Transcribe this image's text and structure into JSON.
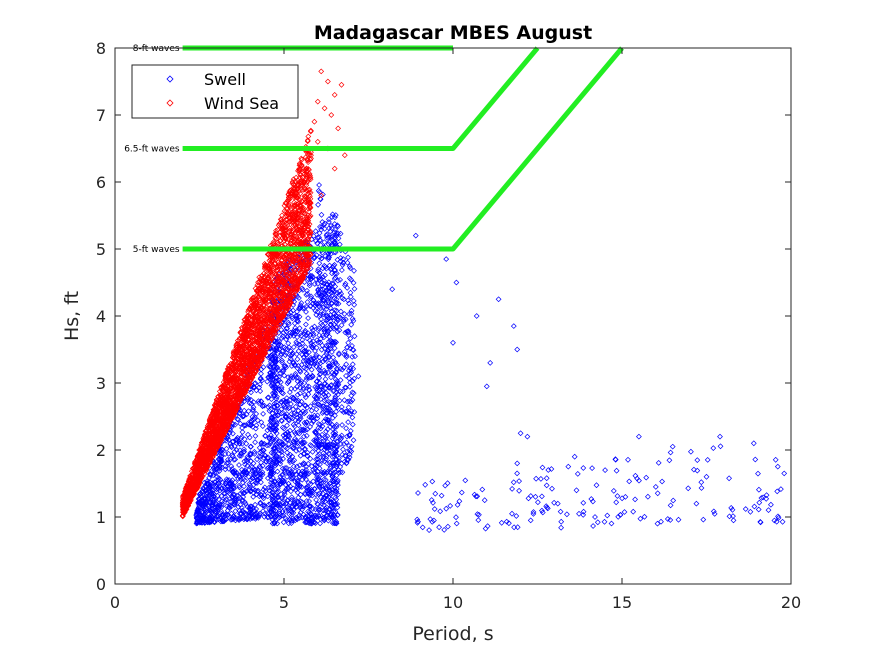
{
  "chart_data": {
    "type": "scatter",
    "title": "Madagascar MBES August",
    "xlabel": "Period, s",
    "ylabel": "Hs, ft",
    "xlim": [
      0,
      20
    ],
    "ylim": [
      0,
      8
    ],
    "xticks": [
      0,
      5,
      10,
      15,
      20
    ],
    "yticks": [
      0,
      1,
      2,
      3,
      4,
      5,
      6,
      7,
      8
    ],
    "grid": false,
    "legend": {
      "location": "top-left",
      "entries": [
        "Swell",
        "Wind Sea"
      ]
    },
    "colors": {
      "swell": "#0000ff",
      "wind_sea": "#ff0000",
      "threshold": "#22ee22"
    },
    "series": [
      {
        "name": "Swell",
        "marker": "diamond",
        "clusters": [
          {
            "x_min": 2.4,
            "x_max": 4.8,
            "y_min_at_xmin": 0.9,
            "y_max_at_xmin": 1.2,
            "y_min_at_xmax": 1.0,
            "y_max_at_xmax": 4.4,
            "count": 900
          },
          {
            "x_min": 4.6,
            "x_max": 6.6,
            "y_min_at_xmin": 0.9,
            "y_max_at_xmin": 4.6,
            "y_min_at_xmax": 0.9,
            "y_max_at_xmax": 5.6,
            "count": 1400
          },
          {
            "x_min": 6.0,
            "x_max": 7.1,
            "y_min_at_xmin": 1.0,
            "y_max_at_xmin": 6.0,
            "y_min_at_xmax": 2.0,
            "y_max_at_xmax": 4.8,
            "count": 350
          },
          {
            "x_min": 8.9,
            "x_max": 19.8,
            "y_min_at_xmin": 0.8,
            "y_max_at_xmin": 1.5,
            "y_min_at_xmax": 0.9,
            "y_max_at_xmax": 2.2,
            "count": 170
          }
        ],
        "points": [
          [
            8.2,
            4.4
          ],
          [
            8.9,
            5.2
          ],
          [
            9.8,
            4.85
          ],
          [
            10.0,
            3.6
          ],
          [
            10.1,
            4.5
          ],
          [
            10.7,
            4.0
          ],
          [
            11.1,
            3.3
          ],
          [
            11.0,
            2.95
          ],
          [
            11.35,
            4.25
          ],
          [
            11.8,
            3.85
          ],
          [
            11.9,
            3.5
          ],
          [
            12.0,
            2.25
          ],
          [
            12.2,
            2.2
          ],
          [
            11.9,
            1.8
          ],
          [
            12.3,
            0.95
          ],
          [
            13.6,
            1.9
          ],
          [
            14.5,
            1.7
          ],
          [
            15.5,
            2.2
          ],
          [
            16.5,
            2.05
          ],
          [
            17.9,
            2.2
          ],
          [
            18.9,
            2.1
          ],
          [
            19.8,
            1.65
          ],
          [
            16.0,
            1.45
          ],
          [
            17.5,
            1.6
          ],
          [
            19.1,
            0.92
          ],
          [
            18.3,
            0.95
          ],
          [
            17.2,
            1.2
          ],
          [
            15.1,
            1.3
          ],
          [
            14.2,
            1.0
          ],
          [
            13.1,
            1.2
          ],
          [
            7.1,
            3.4
          ],
          [
            7.2,
            3.1
          ],
          [
            6.9,
            3.6
          ]
        ]
      },
      {
        "name": "Wind Sea",
        "marker": "diamond",
        "clusters": [
          {
            "x_min": 2.0,
            "x_max": 5.8,
            "y_min_at_xmin": 1.0,
            "y_max_at_xmin": 1.3,
            "y_min_at_xmax": 4.8,
            "y_max_at_xmax": 6.8,
            "count": 3200
          }
        ],
        "points": [
          [
            6.1,
            7.65
          ],
          [
            6.3,
            7.5
          ],
          [
            6.7,
            7.45
          ],
          [
            6.5,
            7.3
          ],
          [
            6.0,
            7.2
          ],
          [
            6.2,
            7.1
          ],
          [
            6.4,
            7.0
          ],
          [
            5.9,
            6.9
          ],
          [
            6.6,
            6.8
          ],
          [
            6.0,
            6.6
          ],
          [
            6.8,
            6.4
          ],
          [
            6.3,
            6.5
          ],
          [
            5.8,
            6.4
          ],
          [
            6.5,
            6.2
          ],
          [
            6.1,
            5.8
          ]
        ]
      }
    ],
    "thresholds": [
      {
        "label": "8-ft waves",
        "points": [
          [
            2,
            8
          ],
          [
            10,
            8
          ]
        ]
      },
      {
        "label": "6.5-ft waves",
        "points": [
          [
            2,
            6.5
          ],
          [
            10,
            6.5
          ],
          [
            12.5,
            8
          ]
        ]
      },
      {
        "label": "5-ft waves",
        "points": [
          [
            2,
            5
          ],
          [
            10,
            5
          ],
          [
            15,
            8
          ]
        ]
      }
    ]
  }
}
